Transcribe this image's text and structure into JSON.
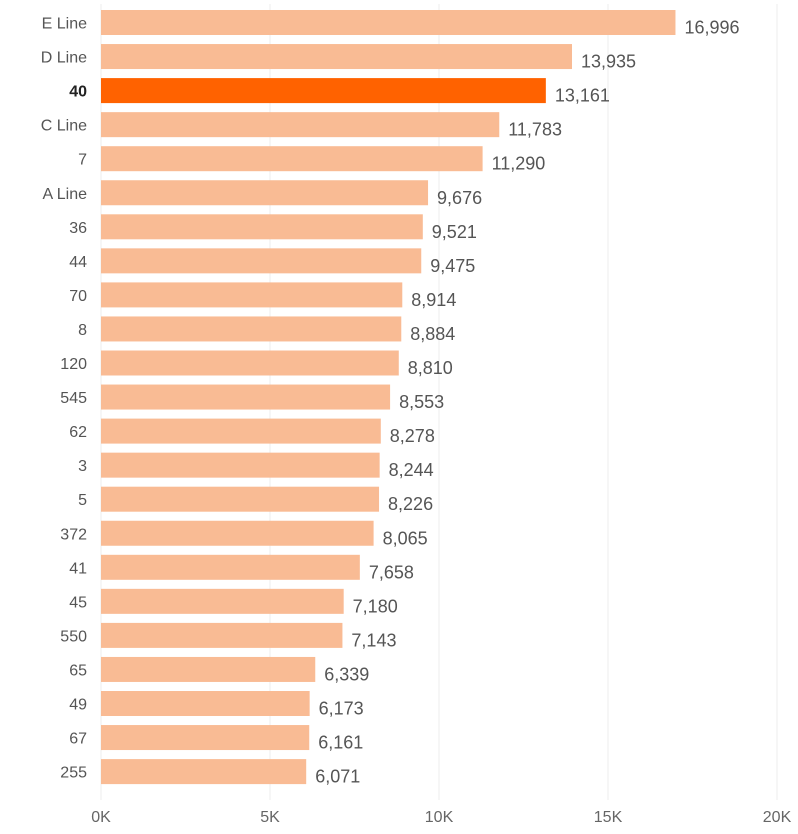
{
  "chart_data": {
    "type": "bar",
    "orientation": "horizontal",
    "title": "",
    "xlabel": "",
    "ylabel": "",
    "xlim": [
      0,
      20000
    ],
    "grid": true,
    "legend": "none",
    "categories": [
      "E Line",
      "D Line",
      "40",
      "C Line",
      "7",
      "A Line",
      "36",
      "44",
      "70",
      "8",
      "120",
      "545",
      "62",
      "3",
      "5",
      "372",
      "41",
      "45",
      "550",
      "65",
      "49",
      "67",
      "255"
    ],
    "values": [
      16996,
      13935,
      13161,
      11783,
      11290,
      9676,
      9521,
      9475,
      8914,
      8884,
      8810,
      8553,
      8278,
      8244,
      8226,
      8065,
      7658,
      7180,
      7143,
      6339,
      6173,
      6161,
      6071
    ],
    "value_labels": [
      "16,996",
      "13,935",
      "13,161",
      "11,783",
      "11,290",
      "9,676",
      "9,521",
      "9,475",
      "8,914",
      "8,884",
      "8,810",
      "8,553",
      "8,278",
      "8,244",
      "8,226",
      "8,065",
      "7,658",
      "7,180",
      "7,143",
      "6,339",
      "6,173",
      "6,161",
      "6,071"
    ],
    "highlight_category": "40",
    "x_ticks": [
      0,
      5000,
      10000,
      15000,
      20000
    ],
    "x_tick_labels": [
      "0K",
      "5K",
      "10K",
      "15K",
      "20K"
    ],
    "colors": {
      "bar": "#f9bb94",
      "highlight": "#ff6200"
    }
  }
}
